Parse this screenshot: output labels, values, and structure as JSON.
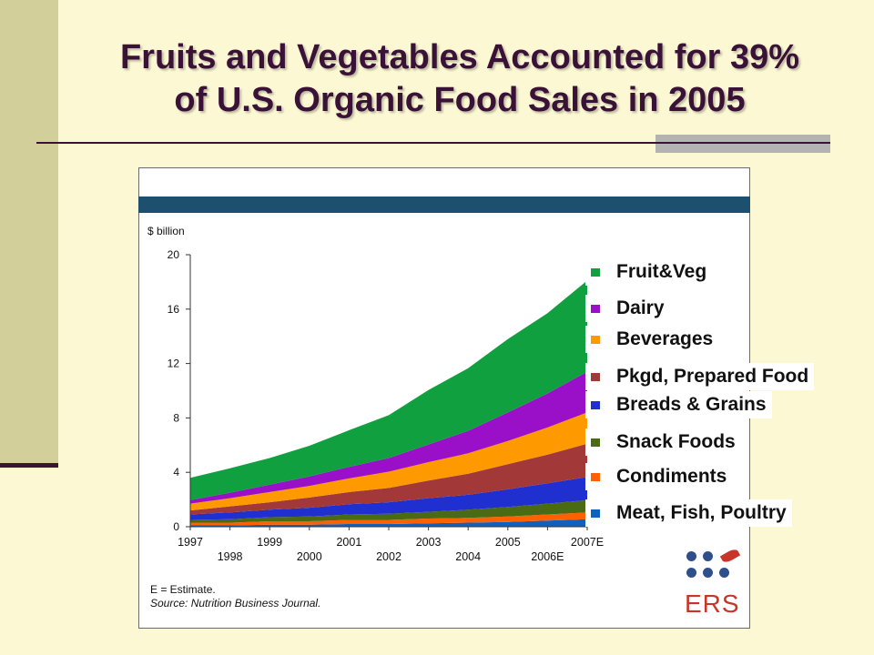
{
  "slide": {
    "title_line1": "Fruits and Vegetables Accounted for 39%",
    "title_line2": "of U.S. Organic Food Sales in 2005"
  },
  "chart_data": {
    "type": "area",
    "stacked": true,
    "ylabel": "$ billion",
    "ylim": [
      0,
      20
    ],
    "yticks": [
      0,
      4,
      8,
      12,
      16,
      20
    ],
    "x": [
      "1997",
      "1998",
      "1999",
      "2000",
      "2001",
      "2002",
      "2003",
      "2004",
      "2005",
      "2006E",
      "2007E"
    ],
    "series": [
      {
        "name": "Meat, Fish, Poultry",
        "color": "#1060c0",
        "values": [
          0.1,
          0.1,
          0.15,
          0.15,
          0.2,
          0.2,
          0.25,
          0.3,
          0.35,
          0.45,
          0.55
        ]
      },
      {
        "name": "Condiments",
        "color": "#ff6000",
        "values": [
          0.2,
          0.2,
          0.25,
          0.25,
          0.3,
          0.3,
          0.35,
          0.35,
          0.4,
          0.45,
          0.5
        ]
      },
      {
        "name": "Snack Foods",
        "color": "#4a6a14",
        "values": [
          0.2,
          0.25,
          0.3,
          0.35,
          0.4,
          0.45,
          0.5,
          0.6,
          0.7,
          0.8,
          0.9
        ]
      },
      {
        "name": "Breads & Grains",
        "color": "#2030d0",
        "values": [
          0.4,
          0.5,
          0.55,
          0.65,
          0.75,
          0.85,
          1.0,
          1.1,
          1.3,
          1.5,
          1.7
        ]
      },
      {
        "name": "Pkgd, Prepared Food",
        "color": "#a23838",
        "values": [
          0.3,
          0.45,
          0.55,
          0.75,
          0.9,
          1.05,
          1.3,
          1.55,
          1.85,
          2.1,
          2.45
        ]
      },
      {
        "name": "Beverages",
        "color": "#ff9900",
        "values": [
          0.5,
          0.6,
          0.75,
          0.85,
          1.0,
          1.2,
          1.35,
          1.5,
          1.7,
          2.0,
          2.3
        ]
      },
      {
        "name": "Dairy",
        "color": "#9a10c8",
        "values": [
          0.25,
          0.4,
          0.55,
          0.7,
          0.85,
          1.0,
          1.3,
          1.65,
          2.1,
          2.5,
          3.0
        ]
      },
      {
        "name": "Fruit&Veg",
        "color": "#10a040",
        "values": [
          1.65,
          1.8,
          1.95,
          2.25,
          2.7,
          3.15,
          4.0,
          4.6,
          5.4,
          5.9,
          6.7
        ]
      }
    ],
    "legend_order": [
      "Fruit&Veg",
      "Dairy",
      "Beverages",
      "Pkgd, Prepared Food",
      "Breads & Grains",
      "Snack Foods",
      "Condiments",
      "Meat, Fish, Poultry"
    ],
    "legend_placement": "right",
    "grid": false,
    "notes": [
      "E =  Estimate.",
      "Source: Nutrition Business Journal."
    ]
  },
  "logo": {
    "text": "ERS"
  }
}
